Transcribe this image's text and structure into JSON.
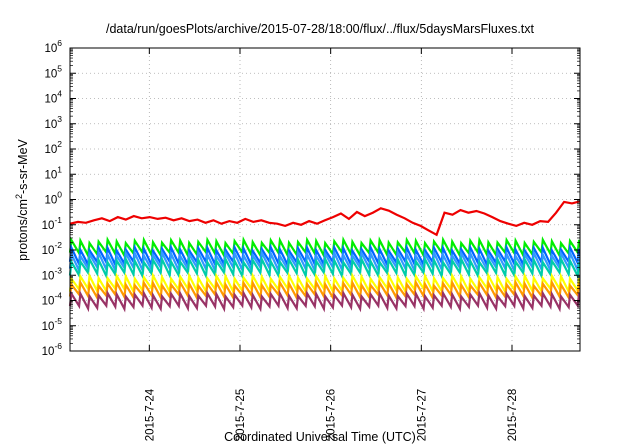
{
  "chart_data": {
    "type": "line",
    "title": "/data/run/goesPlots/archive/2015-07-28/18:00/flux/../flux/5daysMarsFluxes.txt",
    "xlabel": "Coordinated Universal Time (UTC)",
    "ylabel_parts": [
      "protons/cm",
      "2",
      "-s-sr-MeV"
    ],
    "y_scale": "log",
    "ylim": [
      1e-06,
      1000000.0
    ],
    "y_ticks": [
      {
        "base": "10",
        "exp": "6",
        "value": 6
      },
      {
        "base": "10",
        "exp": "5",
        "value": 5
      },
      {
        "base": "10",
        "exp": "4",
        "value": 4
      },
      {
        "base": "10",
        "exp": "3",
        "value": 3
      },
      {
        "base": "10",
        "exp": "2",
        "value": 2
      },
      {
        "base": "10",
        "exp": "1",
        "value": 1
      },
      {
        "base": "10",
        "exp": "0",
        "value": 0
      },
      {
        "base": "10",
        "exp": "-1",
        "value": -1
      },
      {
        "base": "10",
        "exp": "-2",
        "value": -2
      },
      {
        "base": "10",
        "exp": "-3",
        "value": -3
      },
      {
        "base": "10",
        "exp": "-4",
        "value": -4
      },
      {
        "base": "10",
        "exp": "-5",
        "value": -5
      },
      {
        "base": "10",
        "exp": "-6",
        "value": -6
      }
    ],
    "x_range_days": [
      "2015-07-23 03:00",
      "2015-07-28 18:00"
    ],
    "x_ticks": [
      {
        "label": "2015-7-24",
        "day": 24
      },
      {
        "label": "2015-7-25",
        "day": 25
      },
      {
        "label": "2015-7-26",
        "day": 26
      },
      {
        "label": "2015-7-27",
        "day": 27
      },
      {
        "label": "2015-7-28",
        "day": 28
      }
    ],
    "grid": true,
    "series": [
      {
        "color": "#ee0000",
        "values": [
          0.11,
          0.13,
          0.12,
          0.15,
          0.18,
          0.14,
          0.2,
          0.16,
          0.22,
          0.18,
          0.2,
          0.17,
          0.19,
          0.15,
          0.18,
          0.14,
          0.16,
          0.12,
          0.15,
          0.11,
          0.14,
          0.12,
          0.17,
          0.13,
          0.15,
          0.12,
          0.11,
          0.09,
          0.12,
          0.1,
          0.14,
          0.11,
          0.15,
          0.2,
          0.28,
          0.17,
          0.32,
          0.22,
          0.3,
          0.45,
          0.36,
          0.25,
          0.18,
          0.12,
          0.09,
          0.06,
          0.04,
          0.3,
          0.25,
          0.38,
          0.3,
          0.35,
          0.28,
          0.2,
          0.14,
          0.11,
          0.09,
          0.12,
          0.1,
          0.14,
          0.13,
          0.3,
          0.8,
          0.7,
          0.85
        ]
      },
      {
        "color": "#00ee00",
        "sawtooth": {
          "low": 0.007,
          "high": 0.022
        }
      },
      {
        "color": "#0066ff",
        "sawtooth": {
          "low": 0.003,
          "high": 0.011
        }
      },
      {
        "color": "#3399ff",
        "sawtooth": {
          "low": 0.0018,
          "high": 0.0068
        }
      },
      {
        "color": "#00ccaa",
        "sawtooth": {
          "low": 0.0011,
          "high": 0.0038
        }
      },
      {
        "color": "#ffff00",
        "sawtooth": {
          "low": 0.00026,
          "high": 0.00085
        }
      },
      {
        "color": "#ff9900",
        "sawtooth": {
          "low": 0.00015,
          "high": 0.00045
        }
      },
      {
        "color": "#993366",
        "sawtooth": {
          "low": 5.5e-05,
          "high": 0.00017
        }
      }
    ]
  }
}
